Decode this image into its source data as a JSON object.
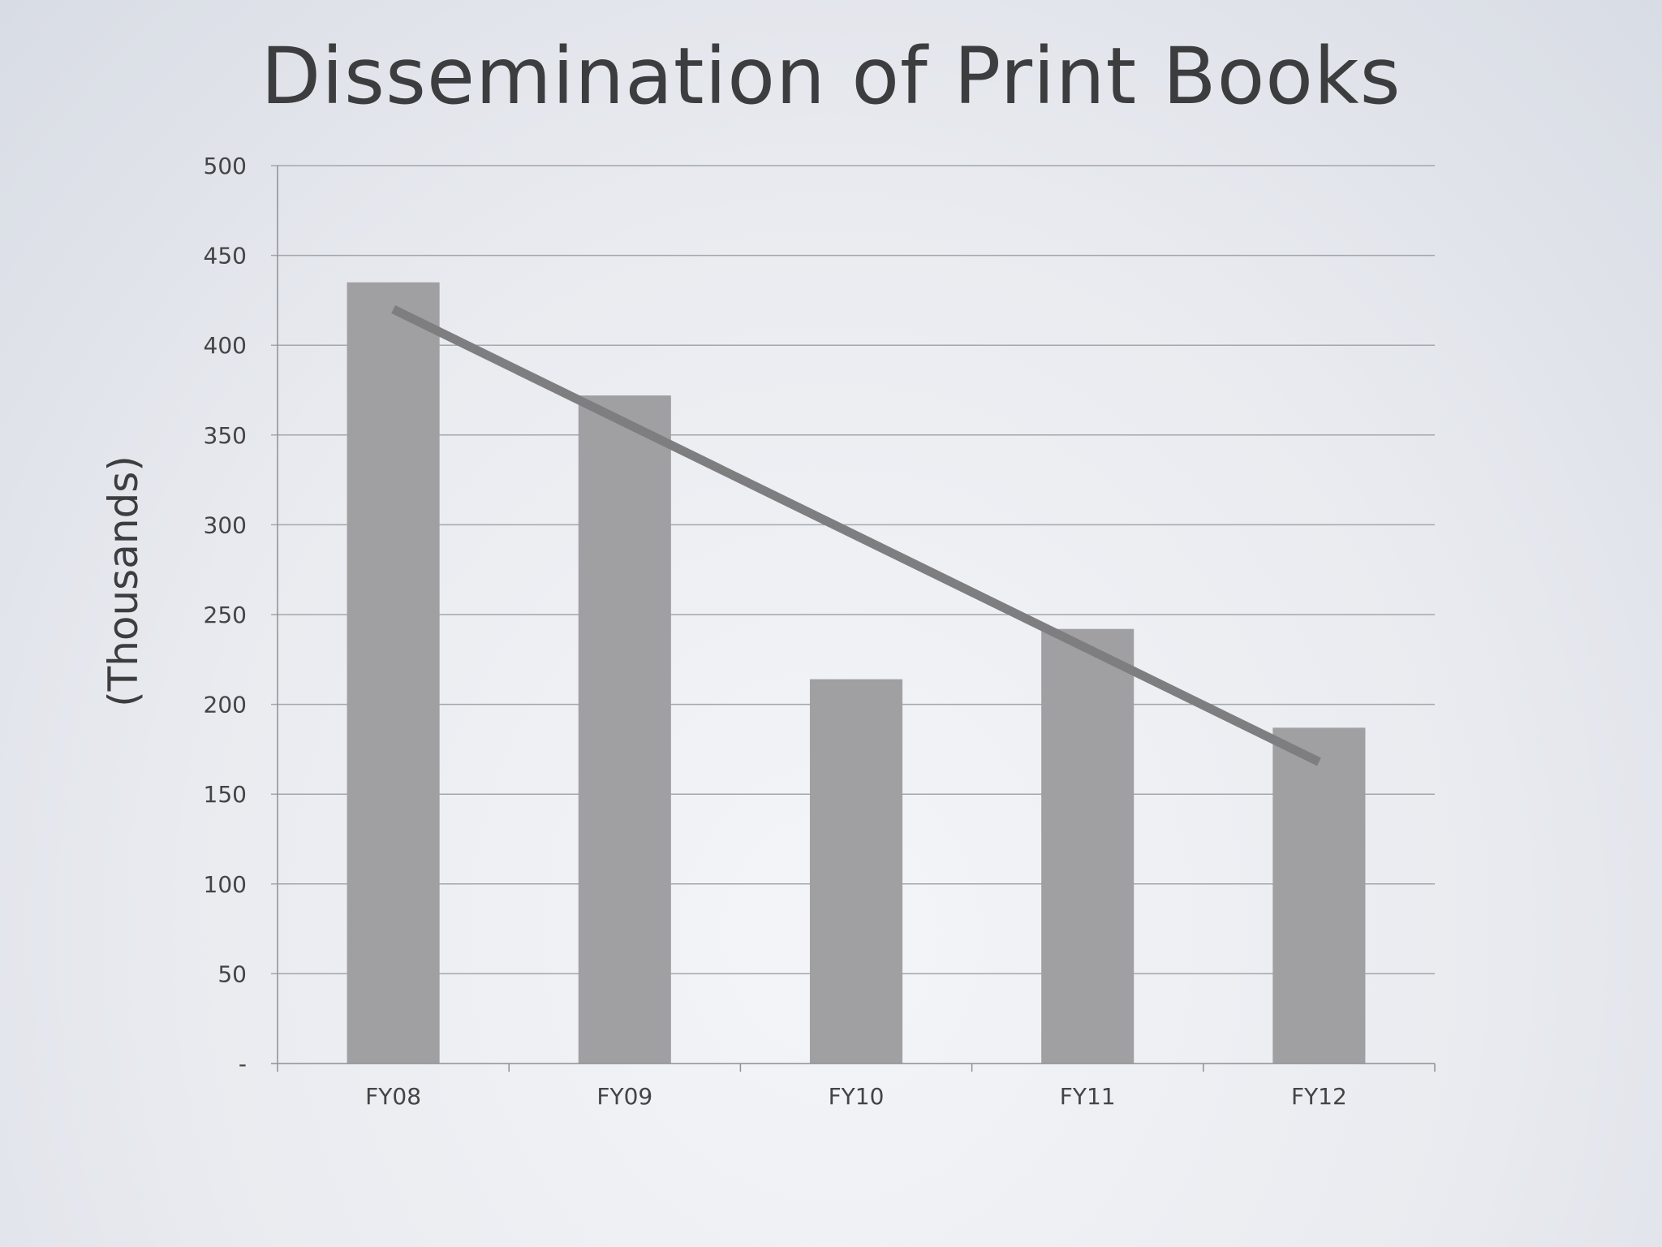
{
  "chart_data": {
    "type": "bar",
    "title": "Dissemination of Print Books",
    "ylabel": "(Thousands)",
    "xlabel": "",
    "categories": [
      "FY08",
      "FY09",
      "FY10",
      "FY11",
      "FY12"
    ],
    "values": [
      435,
      372,
      214,
      242,
      187
    ],
    "ylim": [
      0,
      500
    ],
    "yticks": [
      0,
      50,
      100,
      150,
      200,
      250,
      300,
      350,
      400,
      450,
      500
    ],
    "ytick_labels": [
      "-",
      "50",
      "100",
      "150",
      "200",
      "250",
      "300",
      "350",
      "400",
      "450",
      "500"
    ],
    "trendline": {
      "type": "linear",
      "start": 420,
      "end": 168
    },
    "grid": true,
    "legend": "none",
    "colors": {
      "bar": "#a0a0a2",
      "trendline": "#7e7e80",
      "grid": "#a3a6ab",
      "axis": "#8e9096"
    }
  }
}
